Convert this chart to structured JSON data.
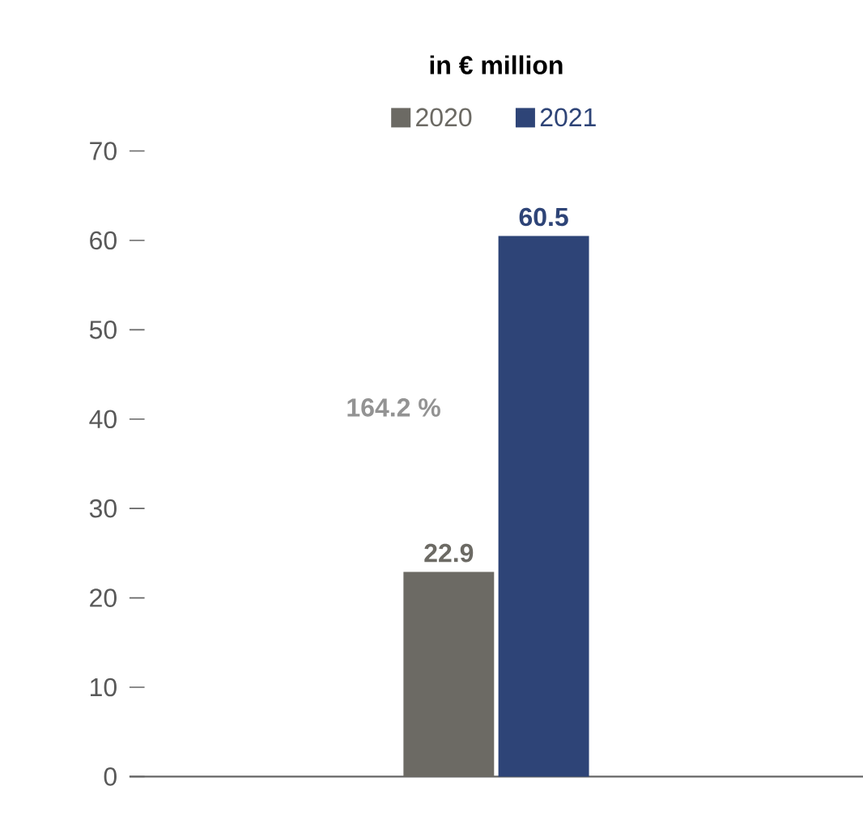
{
  "chart_data": {
    "type": "bar",
    "title": "in € million",
    "categories": [
      null
    ],
    "series": [
      {
        "name": "2020",
        "color": "#6c6a64",
        "values": [
          22.9
        ]
      },
      {
        "name": "2021",
        "color": "#2e4477",
        "values": [
          60.5
        ]
      }
    ],
    "ylim": [
      0,
      70
    ],
    "yticks": [
      0,
      10,
      20,
      30,
      40,
      50,
      60,
      70
    ],
    "data_labels": true,
    "legend": "top",
    "grid": false,
    "annotations": [
      "164.2 %"
    ]
  }
}
